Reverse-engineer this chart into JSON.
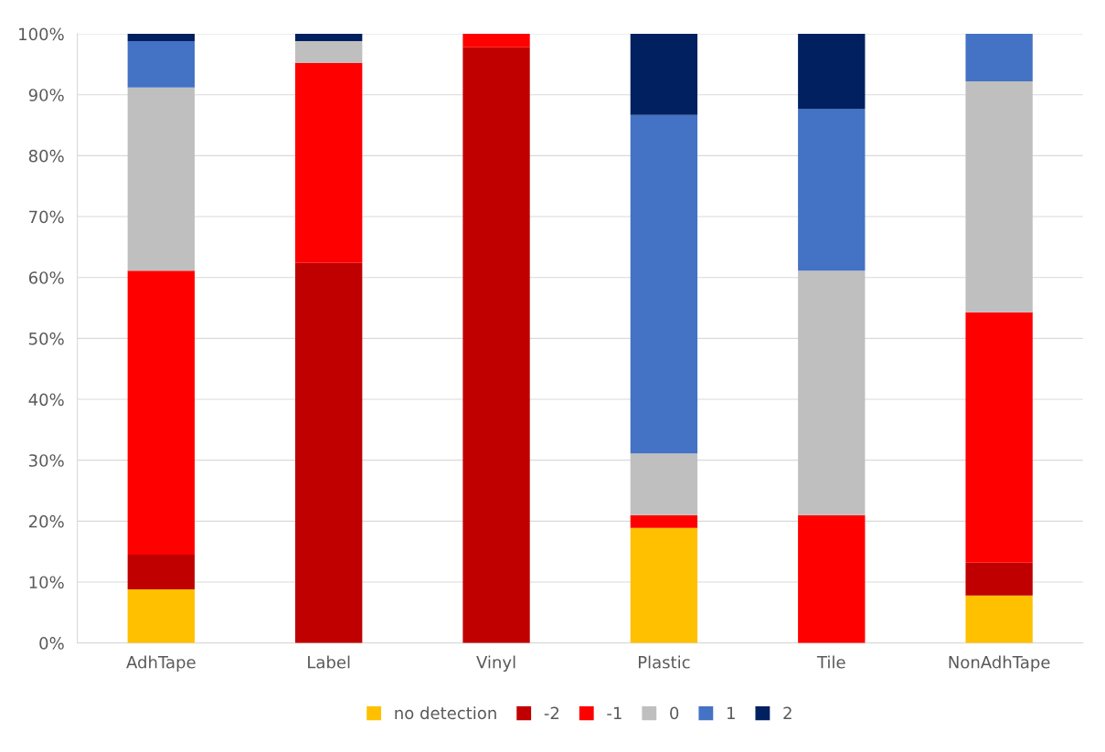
{
  "chart_data": {
    "type": "bar",
    "stacked": true,
    "categories": [
      "AdhTape",
      "Label",
      "Vinyl",
      "Plastic",
      "Tile",
      "NonAdhTape"
    ],
    "series": [
      {
        "name": "no detection",
        "color": "#ffc000",
        "values": [
          8.8,
          0,
          0,
          18.9,
          0,
          7.8
        ]
      },
      {
        "name": "-2",
        "color": "#c00000",
        "values": [
          5.7,
          62.4,
          97.8,
          0,
          0,
          5.4
        ]
      },
      {
        "name": "-1",
        "color": "#ff0000",
        "values": [
          46.6,
          32.8,
          2.2,
          2.1,
          21.0,
          41.1
        ]
      },
      {
        "name": "0",
        "color": "#bfbfbf",
        "values": [
          30.1,
          3.6,
          0,
          10.1,
          40.1,
          37.9
        ]
      },
      {
        "name": "1",
        "color": "#4472c4",
        "values": [
          7.6,
          0,
          0,
          55.6,
          26.6,
          7.8
        ]
      },
      {
        "name": "2",
        "color": "#002060",
        "values": [
          1.2,
          1.2,
          0,
          13.3,
          12.3,
          0
        ]
      }
    ],
    "ylim": [
      0,
      100
    ],
    "yticks": [
      {
        "value": 0,
        "label": "0%"
      },
      {
        "value": 10,
        "label": "10%"
      },
      {
        "value": 20,
        "label": "20%"
      },
      {
        "value": 30,
        "label": "30%"
      },
      {
        "value": 40,
        "label": "40%"
      },
      {
        "value": 50,
        "label": "50%"
      },
      {
        "value": 60,
        "label": "60%"
      },
      {
        "value": 70,
        "label": "70%"
      },
      {
        "value": 80,
        "label": "80%"
      },
      {
        "value": 90,
        "label": "90%"
      },
      {
        "value": 100,
        "label": "100%"
      }
    ],
    "grid": "y",
    "legend": "bottom"
  }
}
